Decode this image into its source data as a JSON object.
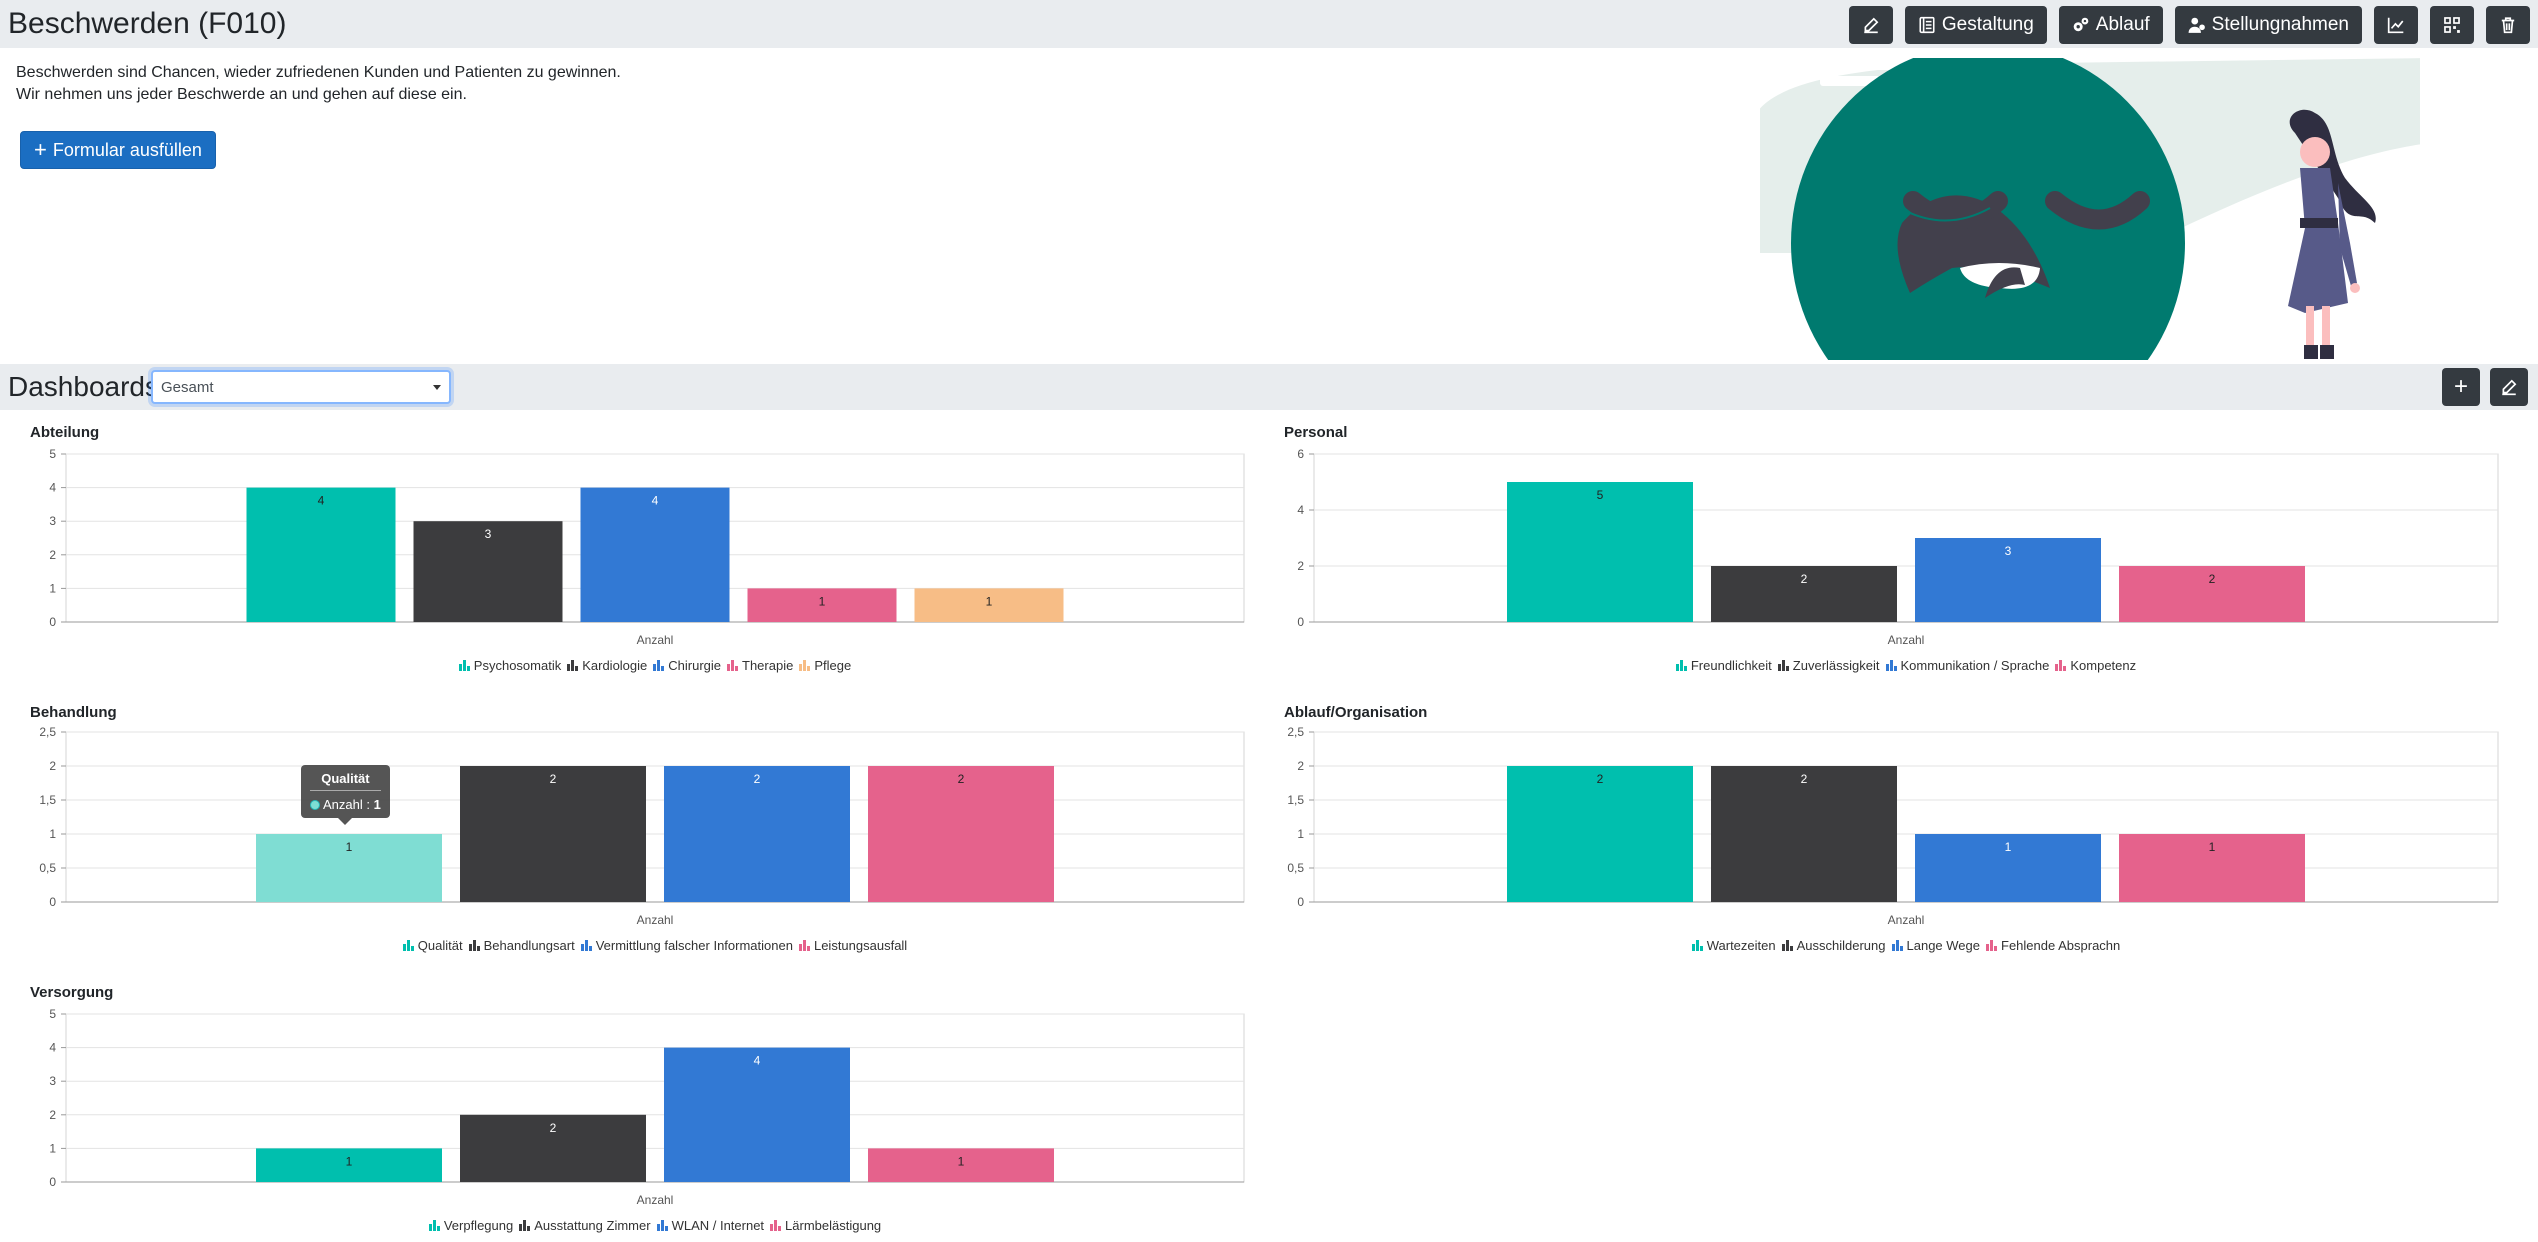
{
  "header": {
    "title": "Beschwerden (F010)",
    "buttons": [
      {
        "name": "edit",
        "label": ""
      },
      {
        "name": "gestaltung",
        "label": "Gestaltung"
      },
      {
        "name": "ablauf",
        "label": "Ablauf"
      },
      {
        "name": "stellungnahmen",
        "label": "Stellungnahmen"
      },
      {
        "name": "statistics",
        "label": ""
      },
      {
        "name": "qr",
        "label": ""
      },
      {
        "name": "delete",
        "label": ""
      }
    ]
  },
  "intro": {
    "line1": "Beschwerden sind Chancen, wieder zufriedenen Kunden und Patienten zu gewinnen.",
    "line2": "Wir nehmen uns jeder Beschwerde an und gehen auf diese ein."
  },
  "fill_button": {
    "label": "Formular ausfüllen"
  },
  "dashboards": {
    "title": "Dashboards",
    "selected": "Gesamt"
  },
  "colors": {
    "teal": "#00bfae",
    "dark": "#3c3c3e",
    "blue": "#3279d4",
    "pink": "#e5628c",
    "orange": "#f7bd86",
    "teal_light": "#7fddd3",
    "topbar": "#e9ecef",
    "button_dark": "#343a40",
    "button_primary": "#1b6ec2"
  },
  "tooltip": {
    "title": "Qualität",
    "series": "Anzahl",
    "value": "1"
  },
  "chart_data": [
    {
      "id": "abteilung",
      "type": "bar",
      "title": "Abteilung",
      "xlabel": "Anzahl",
      "ylim": [
        0,
        5
      ],
      "yticks": [
        "0",
        "1",
        "2",
        "3",
        "4",
        "5"
      ],
      "series": [
        {
          "name": "Psychosomatik",
          "value": 4,
          "color": "#00bfae",
          "label_color": "#222"
        },
        {
          "name": "Kardiologie",
          "value": 3,
          "color": "#3c3c3e",
          "label_color": "#fff"
        },
        {
          "name": "Chirurgie",
          "value": 4,
          "color": "#3279d4",
          "label_color": "#fff"
        },
        {
          "name": "Therapie",
          "value": 1,
          "color": "#e5628c",
          "label_color": "#222"
        },
        {
          "name": "Pflege",
          "value": 1,
          "color": "#f7bd86",
          "label_color": "#222"
        }
      ]
    },
    {
      "id": "personal",
      "type": "bar",
      "title": "Personal",
      "xlabel": "Anzahl",
      "ylim": [
        0,
        6
      ],
      "yticks": [
        "0",
        "2",
        "4",
        "6"
      ],
      "series": [
        {
          "name": "Freundlichkeit",
          "value": 5,
          "color": "#00bfae",
          "label_color": "#222"
        },
        {
          "name": "Zuverlässigkeit",
          "value": 2,
          "color": "#3c3c3e",
          "label_color": "#fff"
        },
        {
          "name": "Kommunikation / Sprache",
          "value": 3,
          "color": "#3279d4",
          "label_color": "#fff"
        },
        {
          "name": "Kompetenz",
          "value": 2,
          "color": "#e5628c",
          "label_color": "#222"
        }
      ]
    },
    {
      "id": "behandlung",
      "type": "bar",
      "title": "Behandlung",
      "xlabel": "Anzahl",
      "ylim": [
        0,
        2.5
      ],
      "yticks": [
        "0",
        "0,5",
        "1",
        "1,5",
        "2",
        "2,5"
      ],
      "series": [
        {
          "name": "Qualität",
          "value": 1,
          "color": "#00bfae",
          "label_color": "#222",
          "highlight": true
        },
        {
          "name": "Behandlungsart",
          "value": 2,
          "color": "#3c3c3e",
          "label_color": "#fff"
        },
        {
          "name": "Vermittlung falscher Informationen",
          "value": 2,
          "color": "#3279d4",
          "label_color": "#fff"
        },
        {
          "name": "Leistungsausfall",
          "value": 2,
          "color": "#e5628c",
          "label_color": "#222"
        }
      ]
    },
    {
      "id": "ablauf",
      "type": "bar",
      "title": "Ablauf/Organisation",
      "xlabel": "Anzahl",
      "ylim": [
        0,
        2.5
      ],
      "yticks": [
        "0",
        "0,5",
        "1",
        "1,5",
        "2",
        "2,5"
      ],
      "series": [
        {
          "name": "Wartezeiten",
          "value": 2,
          "color": "#00bfae",
          "label_color": "#222"
        },
        {
          "name": "Ausschilderung",
          "value": 2,
          "color": "#3c3c3e",
          "label_color": "#fff"
        },
        {
          "name": "Lange Wege",
          "value": 1,
          "color": "#3279d4",
          "label_color": "#fff"
        },
        {
          "name": "Fehlende Absprachn",
          "value": 1,
          "color": "#e5628c",
          "label_color": "#222"
        }
      ]
    },
    {
      "id": "versorgung",
      "type": "bar",
      "title": "Versorgung",
      "xlabel": "Anzahl",
      "ylim": [
        0,
        5
      ],
      "yticks": [
        "0",
        "1",
        "2",
        "3",
        "4",
        "5"
      ],
      "series": [
        {
          "name": "Verpflegung",
          "value": 1,
          "color": "#00bfae",
          "label_color": "#222"
        },
        {
          "name": "Ausstattung Zimmer",
          "value": 2,
          "color": "#3c3c3e",
          "label_color": "#fff"
        },
        {
          "name": "WLAN / Internet",
          "value": 4,
          "color": "#3279d4",
          "label_color": "#fff"
        },
        {
          "name": "Lärmbelästigung",
          "value": 1,
          "color": "#e5628c",
          "label_color": "#222"
        }
      ]
    }
  ]
}
